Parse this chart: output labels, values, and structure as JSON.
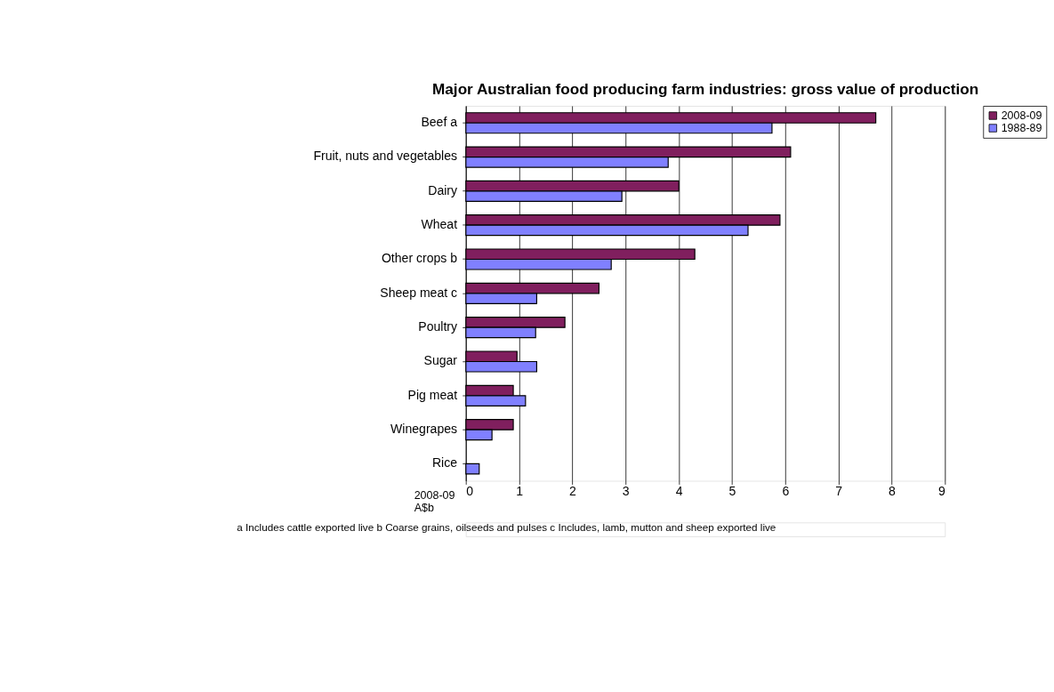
{
  "chart_data": {
    "type": "bar",
    "orientation": "horizontal",
    "title": "Major Australian food producing farm industries: gross value of production",
    "categories": [
      "Beef a",
      "Fruit, nuts and vegetables",
      "Dairy",
      "Wheat",
      "Other crops b",
      "Sheep meat c",
      "Poultry",
      "Sugar",
      "Pig meat",
      "Winegrapes",
      "Rice"
    ],
    "series": [
      {
        "name": "2008-09",
        "color": "#801f5e",
        "values": [
          7.7,
          6.1,
          4.0,
          5.9,
          4.3,
          2.5,
          1.86,
          0.96,
          0.89,
          0.89,
          null
        ]
      },
      {
        "name": "1988-89",
        "color": "#8080ff",
        "values": [
          5.75,
          3.8,
          2.93,
          5.3,
          2.73,
          1.33,
          1.31,
          1.33,
          1.12,
          0.49,
          0.25
        ]
      }
    ],
    "xlabel": "2008-09\nA$b",
    "xlim": [
      0,
      9
    ],
    "xticks": [
      0,
      1,
      2,
      3,
      4,
      5,
      6,
      7,
      8,
      9
    ],
    "grid": "x",
    "legend": "top right",
    "annotations": [
      "a Includes cattle exported live b Coarse grains, oilseeds and pulses c Includes, lamb, mutton and sheep exported live"
    ]
  }
}
